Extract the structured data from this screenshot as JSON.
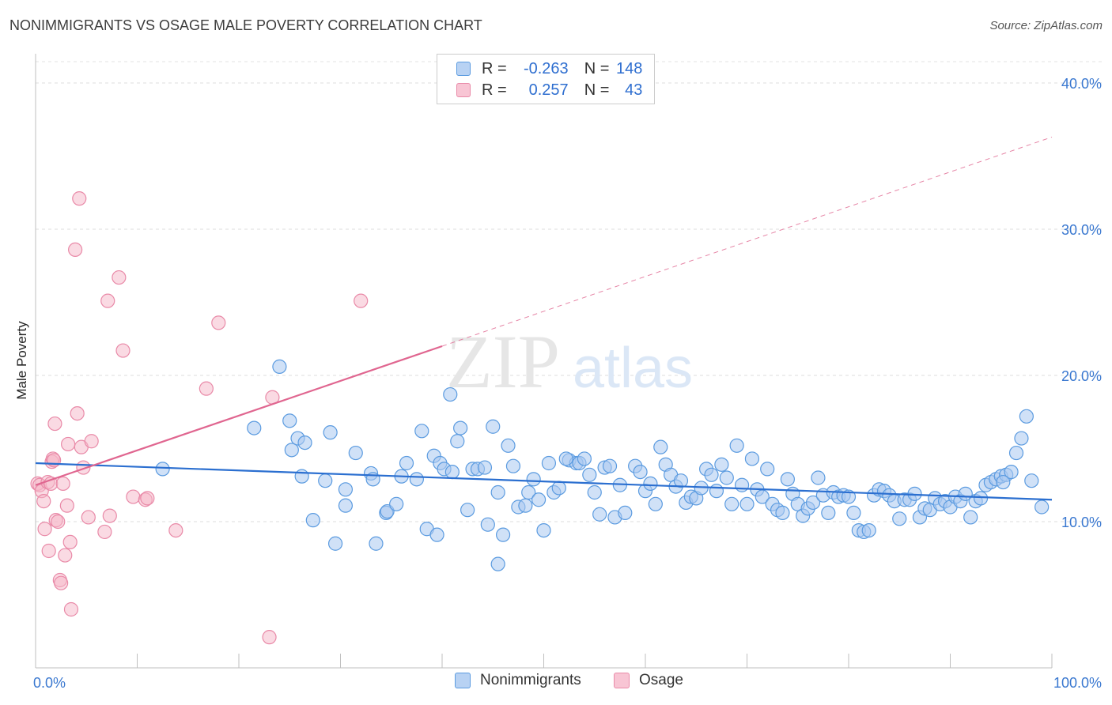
{
  "title": "NONIMMIGRANTS VS OSAGE MALE POVERTY CORRELATION CHART",
  "source": "Source: ZipAtlas.com",
  "watermark": {
    "zip": "ZIP",
    "atlas": "atlas"
  },
  "colors": {
    "blue": "#5b9be0",
    "blue_fill": "#a9c8f0",
    "blue_line": "#2b6fd0",
    "pink": "#e98aa8",
    "pink_fill": "#f5b6c8",
    "pink_line": "#e06690",
    "tick_label": "#3a78d0"
  },
  "legend": {
    "rows": [
      {
        "r_label": "R =",
        "r_value": "-0.263",
        "n_label": "N =",
        "n_value": "148"
      },
      {
        "r_label": "R =",
        "r_value": "0.257",
        "n_label": "N =",
        "n_value": "43"
      }
    ]
  },
  "bottom_legend": [
    "Nonimmigrants",
    "Osage"
  ],
  "chart_data": {
    "type": "scatter",
    "title": "NONIMMIGRANTS VS OSAGE MALE POVERTY CORRELATION CHART",
    "xlabel": "",
    "ylabel": "Male Poverty",
    "xlim": [
      0,
      100
    ],
    "ylim": [
      0,
      42
    ],
    "x_tick_labels": [
      "0.0%",
      "100.0%"
    ],
    "y_ticks": [
      10,
      20,
      30,
      40
    ],
    "y_tick_labels": [
      "10.0%",
      "20.0%",
      "30.0%",
      "40.0%"
    ],
    "series": [
      {
        "name": "Nonimmigrants",
        "r": -0.263,
        "n": 148,
        "trend": {
          "x0": 0,
          "y0": 14.0,
          "x1": 100,
          "y1": 11.5
        },
        "points": [
          [
            12.5,
            13.6
          ],
          [
            21.5,
            16.4
          ],
          [
            24.0,
            20.6
          ],
          [
            25.0,
            16.9
          ],
          [
            25.2,
            14.9
          ],
          [
            25.8,
            15.7
          ],
          [
            26.2,
            13.1
          ],
          [
            26.5,
            15.4
          ],
          [
            27.3,
            10.1
          ],
          [
            28.5,
            12.8
          ],
          [
            29.0,
            16.1
          ],
          [
            29.5,
            8.5
          ],
          [
            30.5,
            12.2
          ],
          [
            30.5,
            11.1
          ],
          [
            31.5,
            14.7
          ],
          [
            33.0,
            13.3
          ],
          [
            33.5,
            8.5
          ],
          [
            34.5,
            10.6
          ],
          [
            34.6,
            10.7
          ],
          [
            35.5,
            11.2
          ],
          [
            36.0,
            13.1
          ],
          [
            36.5,
            14.0
          ],
          [
            37.5,
            12.9
          ],
          [
            38.0,
            16.2
          ],
          [
            38.5,
            9.5
          ],
          [
            39.2,
            14.5
          ],
          [
            39.5,
            9.1
          ],
          [
            39.8,
            14.0
          ],
          [
            40.2,
            13.6
          ],
          [
            40.8,
            18.7
          ],
          [
            41.0,
            13.4
          ],
          [
            41.5,
            15.5
          ],
          [
            41.8,
            16.4
          ],
          [
            42.5,
            10.8
          ],
          [
            43.0,
            13.6
          ],
          [
            43.5,
            13.6
          ],
          [
            44.2,
            13.7
          ],
          [
            44.5,
            9.8
          ],
          [
            45.0,
            16.5
          ],
          [
            45.5,
            12.0
          ],
          [
            45.5,
            7.1
          ],
          [
            46.0,
            9.1
          ],
          [
            46.5,
            15.2
          ],
          [
            47.0,
            13.8
          ],
          [
            47.5,
            11.0
          ],
          [
            48.2,
            11.1
          ],
          [
            48.5,
            12.0
          ],
          [
            49.0,
            12.9
          ],
          [
            49.5,
            11.5
          ],
          [
            50.0,
            9.4
          ],
          [
            50.5,
            14.0
          ],
          [
            51.0,
            12.0
          ],
          [
            51.5,
            12.3
          ],
          [
            52.5,
            14.2
          ],
          [
            53.2,
            14.0
          ],
          [
            53.5,
            14.0
          ],
          [
            54.0,
            14.3
          ],
          [
            54.5,
            13.2
          ],
          [
            55.0,
            12.0
          ],
          [
            55.5,
            10.5
          ],
          [
            56.0,
            13.7
          ],
          [
            56.5,
            13.8
          ],
          [
            57.0,
            10.3
          ],
          [
            57.5,
            12.5
          ],
          [
            58.0,
            10.6
          ],
          [
            59.0,
            13.8
          ],
          [
            59.5,
            13.4
          ],
          [
            60.0,
            12.1
          ],
          [
            60.5,
            12.6
          ],
          [
            61.0,
            11.2
          ],
          [
            61.5,
            15.1
          ],
          [
            62.0,
            13.9
          ],
          [
            62.5,
            13.2
          ],
          [
            63.0,
            12.4
          ],
          [
            63.5,
            12.8
          ],
          [
            64.0,
            11.3
          ],
          [
            64.5,
            11.7
          ],
          [
            65.0,
            11.6
          ],
          [
            65.5,
            12.3
          ],
          [
            66.0,
            13.6
          ],
          [
            66.5,
            13.2
          ],
          [
            67.0,
            12.1
          ],
          [
            67.5,
            13.9
          ],
          [
            68.0,
            13.0
          ],
          [
            68.5,
            11.2
          ],
          [
            69.0,
            15.2
          ],
          [
            69.5,
            12.5
          ],
          [
            70.0,
            11.2
          ],
          [
            70.5,
            14.3
          ],
          [
            71.0,
            12.2
          ],
          [
            71.5,
            11.7
          ],
          [
            72.0,
            13.6
          ],
          [
            72.5,
            11.2
          ],
          [
            73.0,
            10.8
          ],
          [
            73.5,
            10.6
          ],
          [
            74.0,
            12.9
          ],
          [
            74.5,
            11.9
          ],
          [
            75.0,
            11.2
          ],
          [
            75.5,
            10.4
          ],
          [
            76.0,
            10.9
          ],
          [
            76.5,
            11.3
          ],
          [
            77.0,
            13.0
          ],
          [
            77.5,
            11.8
          ],
          [
            78.0,
            10.6
          ],
          [
            78.5,
            12.0
          ],
          [
            79.0,
            11.7
          ],
          [
            79.5,
            11.8
          ],
          [
            80.0,
            11.7
          ],
          [
            80.5,
            10.6
          ],
          [
            81.0,
            9.4
          ],
          [
            81.5,
            9.3
          ],
          [
            82.0,
            9.4
          ],
          [
            82.5,
            11.8
          ],
          [
            83.0,
            12.2
          ],
          [
            83.5,
            12.1
          ],
          [
            84.0,
            11.8
          ],
          [
            84.5,
            11.4
          ],
          [
            85.0,
            10.2
          ],
          [
            85.5,
            11.5
          ],
          [
            86.0,
            11.5
          ],
          [
            86.5,
            11.9
          ],
          [
            87.0,
            10.3
          ],
          [
            87.5,
            10.9
          ],
          [
            88.0,
            10.8
          ],
          [
            88.5,
            11.6
          ],
          [
            89.0,
            11.2
          ],
          [
            89.5,
            11.4
          ],
          [
            90.0,
            11.0
          ],
          [
            90.5,
            11.7
          ],
          [
            91.0,
            11.4
          ],
          [
            91.5,
            11.9
          ],
          [
            92.0,
            10.3
          ],
          [
            92.5,
            11.4
          ],
          [
            93.0,
            11.6
          ],
          [
            93.5,
            12.5
          ],
          [
            94.0,
            12.7
          ],
          [
            94.5,
            12.9
          ],
          [
            95.0,
            13.1
          ],
          [
            95.5,
            13.2
          ],
          [
            96.0,
            13.4
          ],
          [
            96.5,
            14.7
          ],
          [
            97.0,
            15.7
          ],
          [
            97.5,
            17.2
          ],
          [
            98.0,
            12.8
          ],
          [
            99.0,
            11.0
          ],
          [
            95.2,
            12.7
          ],
          [
            52.2,
            14.3
          ],
          [
            33.2,
            12.9
          ]
        ]
      },
      {
        "name": "Osage",
        "r": 0.257,
        "n": 43,
        "trend": {
          "x0": 0,
          "y0": 12.5,
          "x1": 40,
          "y1": 22.0,
          "extended_to": {
            "x": 100,
            "y": 36.3
          }
        },
        "points": [
          [
            0.2,
            12.6
          ],
          [
            0.4,
            12.5
          ],
          [
            0.6,
            12.1
          ],
          [
            0.8,
            11.4
          ],
          [
            0.9,
            9.5
          ],
          [
            1.2,
            12.7
          ],
          [
            1.3,
            8.0
          ],
          [
            1.5,
            12.6
          ],
          [
            1.6,
            14.1
          ],
          [
            1.7,
            14.3
          ],
          [
            1.8,
            14.2
          ],
          [
            1.9,
            16.7
          ],
          [
            2.0,
            10.1
          ],
          [
            2.2,
            10.0
          ],
          [
            2.4,
            6.0
          ],
          [
            2.5,
            5.8
          ],
          [
            2.7,
            12.6
          ],
          [
            2.9,
            7.7
          ],
          [
            3.1,
            11.1
          ],
          [
            3.2,
            15.3
          ],
          [
            3.4,
            8.6
          ],
          [
            3.5,
            4.0
          ],
          [
            3.9,
            28.6
          ],
          [
            4.1,
            17.4
          ],
          [
            4.3,
            32.1
          ],
          [
            4.5,
            15.1
          ],
          [
            4.7,
            13.7
          ],
          [
            5.2,
            10.3
          ],
          [
            5.5,
            15.5
          ],
          [
            6.8,
            9.3
          ],
          [
            7.1,
            25.1
          ],
          [
            7.3,
            10.4
          ],
          [
            8.2,
            26.7
          ],
          [
            8.6,
            21.7
          ],
          [
            9.6,
            11.7
          ],
          [
            10.8,
            11.5
          ],
          [
            11.0,
            11.6
          ],
          [
            13.8,
            9.4
          ],
          [
            16.8,
            19.1
          ],
          [
            18.0,
            23.6
          ],
          [
            23.0,
            2.1
          ],
          [
            23.3,
            18.5
          ],
          [
            32.0,
            25.1
          ]
        ]
      }
    ]
  }
}
